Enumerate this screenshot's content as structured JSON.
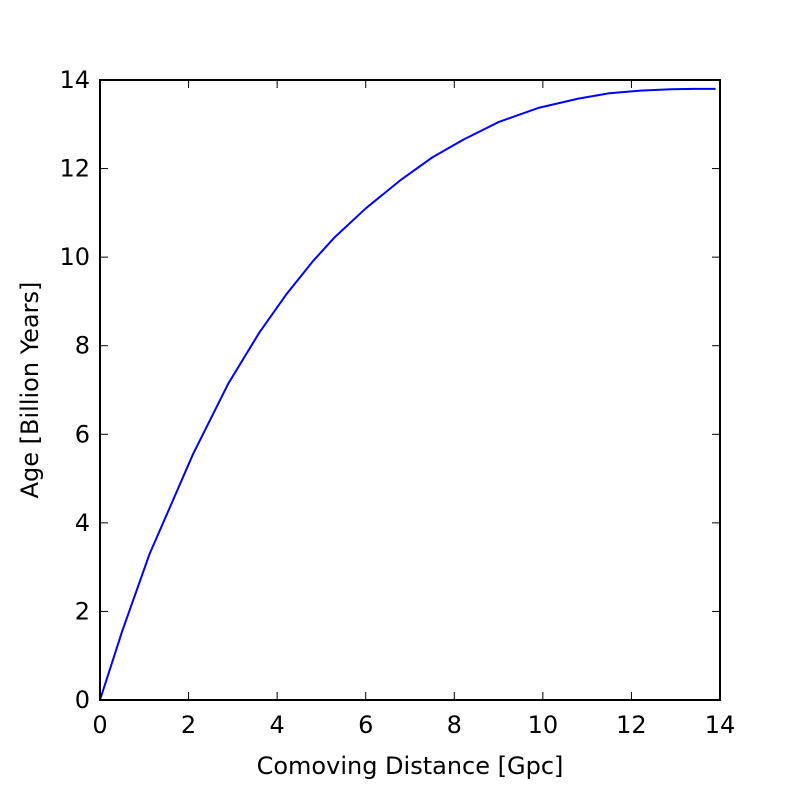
{
  "chart_data": {
    "type": "line",
    "title": "",
    "xlabel": "Comoving Distance [Gpc]",
    "ylabel": "Age [Billion Years]",
    "xlim": [
      0,
      14
    ],
    "ylim": [
      0,
      14
    ],
    "xticks": [
      0,
      2,
      4,
      6,
      8,
      10,
      12,
      14
    ],
    "yticks": [
      0,
      2,
      4,
      6,
      8,
      10,
      12,
      14
    ],
    "grid": false,
    "legend": "none",
    "series": [
      {
        "color": "#0000ff",
        "x": [
          0,
          0.5,
          1.12,
          1.6,
          2.1,
          2.9,
          3.6,
          4.2,
          4.8,
          5.3,
          6.0,
          6.8,
          7.5,
          8.2,
          9.0,
          9.9,
          10.8,
          11.5,
          12.2,
          12.9,
          13.4,
          13.9
        ],
        "y": [
          0,
          1.55,
          3.3,
          4.4,
          5.55,
          7.15,
          8.3,
          9.15,
          9.9,
          10.45,
          11.1,
          11.75,
          12.25,
          12.65,
          13.05,
          13.37,
          13.58,
          13.7,
          13.76,
          13.79,
          13.8,
          13.8
        ]
      }
    ]
  }
}
